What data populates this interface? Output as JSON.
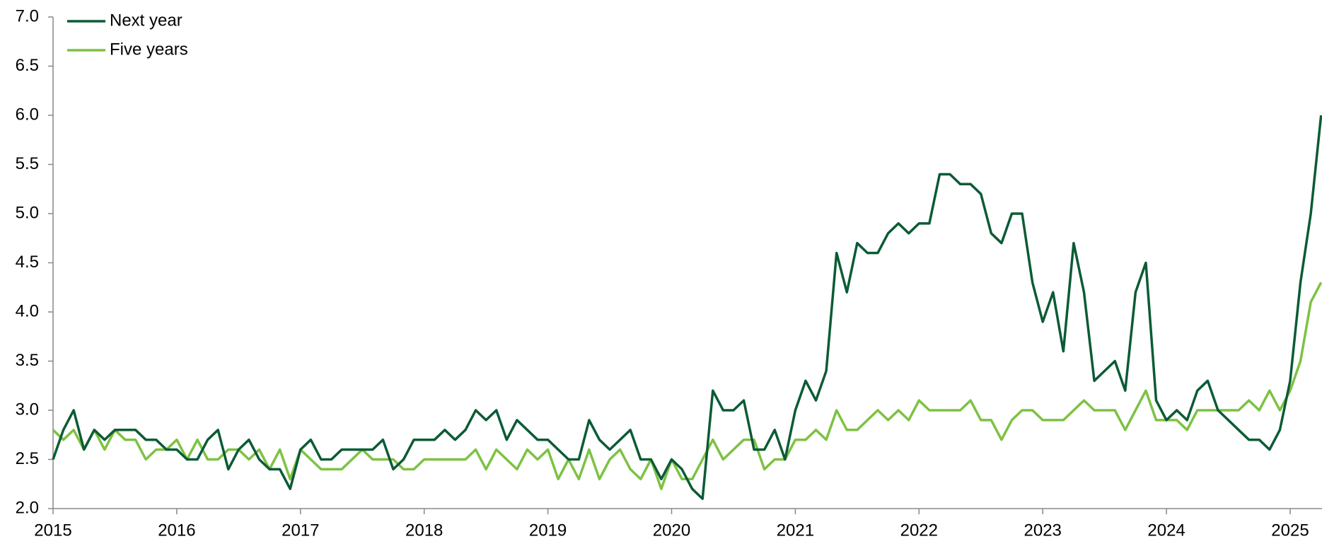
{
  "chart_data": {
    "type": "line",
    "categories": [
      "2015",
      null,
      null,
      null,
      null,
      null,
      null,
      null,
      null,
      null,
      null,
      null,
      "2016",
      null,
      null,
      null,
      null,
      null,
      null,
      null,
      null,
      null,
      null,
      null,
      "2017",
      null,
      null,
      null,
      null,
      null,
      null,
      null,
      null,
      null,
      null,
      null,
      "2018",
      null,
      null,
      null,
      null,
      null,
      null,
      null,
      null,
      null,
      null,
      null,
      "2019",
      null,
      null,
      null,
      null,
      null,
      null,
      null,
      null,
      null,
      null,
      null,
      "2020",
      null,
      null,
      null,
      null,
      null,
      null,
      null,
      null,
      null,
      null,
      null,
      "2021",
      null,
      null,
      null,
      null,
      null,
      null,
      null,
      null,
      null,
      null,
      null,
      "2022",
      null,
      null,
      null,
      null,
      null,
      null,
      null,
      null,
      null,
      null,
      null,
      "2023",
      null,
      null,
      null,
      null,
      null,
      null,
      null,
      null,
      null,
      null,
      null,
      "2024",
      null,
      null,
      null,
      null,
      null,
      null,
      null,
      null,
      null,
      null,
      null,
      "2025",
      null,
      null,
      null
    ],
    "series": [
      {
        "name": "Next year",
        "color": "#0b5b35",
        "values": [
          2.5,
          2.8,
          3.0,
          2.6,
          2.8,
          2.7,
          2.8,
          2.8,
          2.8,
          2.7,
          2.7,
          2.6,
          2.6,
          2.5,
          2.5,
          2.7,
          2.8,
          2.4,
          2.6,
          2.7,
          2.5,
          2.4,
          2.4,
          2.2,
          2.6,
          2.7,
          2.5,
          2.5,
          2.6,
          2.6,
          2.6,
          2.6,
          2.7,
          2.4,
          2.5,
          2.7,
          2.7,
          2.7,
          2.8,
          2.7,
          2.8,
          3.0,
          2.9,
          3.0,
          2.7,
          2.9,
          2.8,
          2.7,
          2.7,
          2.6,
          2.5,
          2.5,
          2.9,
          2.7,
          2.6,
          2.7,
          2.8,
          2.5,
          2.5,
          2.3,
          2.5,
          2.4,
          2.2,
          2.1,
          3.2,
          3.0,
          3.0,
          3.1,
          2.6,
          2.6,
          2.8,
          2.5,
          3.0,
          3.3,
          3.1,
          3.4,
          4.6,
          4.2,
          4.7,
          4.6,
          4.6,
          4.8,
          4.9,
          4.8,
          4.9,
          4.9,
          5.4,
          5.4,
          5.3,
          5.3,
          5.2,
          4.8,
          4.7,
          5.0,
          5.0,
          4.3,
          3.9,
          4.2,
          3.6,
          4.7,
          4.2,
          3.3,
          3.4,
          3.5,
          3.2,
          4.2,
          4.5,
          3.1,
          2.9,
          3.0,
          2.9,
          3.2,
          3.3,
          3.0,
          2.9,
          2.8,
          2.7,
          2.7,
          2.6,
          2.8,
          3.3,
          4.3,
          5.0,
          6.0
        ]
      },
      {
        "name": "Five years",
        "color": "#7dc242",
        "values": [
          2.8,
          2.7,
          2.8,
          2.6,
          2.8,
          2.6,
          2.8,
          2.7,
          2.7,
          2.5,
          2.6,
          2.6,
          2.7,
          2.5,
          2.7,
          2.5,
          2.5,
          2.6,
          2.6,
          2.5,
          2.6,
          2.4,
          2.6,
          2.3,
          2.6,
          2.5,
          2.4,
          2.4,
          2.4,
          2.5,
          2.6,
          2.5,
          2.5,
          2.5,
          2.4,
          2.4,
          2.5,
          2.5,
          2.5,
          2.5,
          2.5,
          2.6,
          2.4,
          2.6,
          2.5,
          2.4,
          2.6,
          2.5,
          2.6,
          2.3,
          2.5,
          2.3,
          2.6,
          2.3,
          2.5,
          2.6,
          2.4,
          2.3,
          2.5,
          2.2,
          2.5,
          2.3,
          2.3,
          2.5,
          2.7,
          2.5,
          2.6,
          2.7,
          2.7,
          2.4,
          2.5,
          2.5,
          2.7,
          2.7,
          2.8,
          2.7,
          3.0,
          2.8,
          2.8,
          2.9,
          3.0,
          2.9,
          3.0,
          2.9,
          3.1,
          3.0,
          3.0,
          3.0,
          3.0,
          3.1,
          2.9,
          2.9,
          2.7,
          2.9,
          3.0,
          3.0,
          2.9,
          2.9,
          2.9,
          3.0,
          3.1,
          3.0,
          3.0,
          3.0,
          2.8,
          3.0,
          3.2,
          2.9,
          2.9,
          2.9,
          2.8,
          3.0,
          3.0,
          3.0,
          3.0,
          3.0,
          3.1,
          3.0,
          3.2,
          3.0,
          3.2,
          3.5,
          4.1,
          4.3
        ]
      }
    ],
    "ylim": [
      2,
      7
    ],
    "yticks": [
      {
        "value": 2,
        "label": "2.0"
      },
      {
        "value": 2.5,
        "label": "2.5"
      },
      {
        "value": 3,
        "label": "3.0"
      },
      {
        "value": 3.5,
        "label": "3.5"
      },
      {
        "value": 4,
        "label": "4.0"
      },
      {
        "value": 4.5,
        "label": "4.5"
      },
      {
        "value": 5,
        "label": "5.0"
      },
      {
        "value": 5.5,
        "label": "5.5"
      },
      {
        "value": 6,
        "label": "6.0"
      },
      {
        "value": 6.5,
        "label": "6.5"
      },
      {
        "value": 7,
        "label": "7.0"
      }
    ],
    "grid": false,
    "legend": "top-left"
  }
}
